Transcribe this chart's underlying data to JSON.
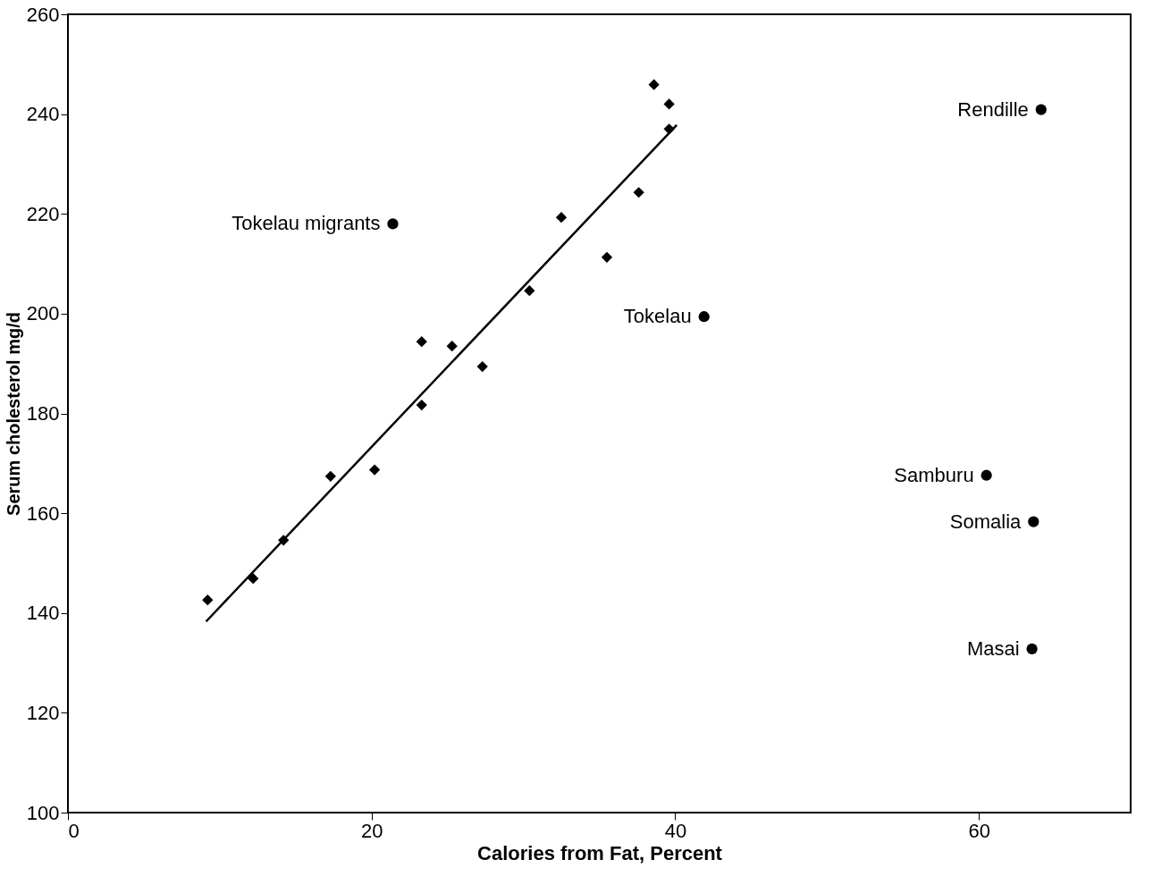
{
  "chart_data": {
    "type": "scatter",
    "xlabel": "Calories from Fat, Percent",
    "ylabel": "Serum cholesterol mg/d",
    "xlim": [
      0,
      70
    ],
    "ylim": [
      100,
      260
    ],
    "xticks": [
      0,
      20,
      40,
      60
    ],
    "yticks": [
      100,
      120,
      140,
      160,
      180,
      200,
      220,
      240,
      260
    ],
    "grid": false,
    "series": [
      {
        "marker": "diamond",
        "color": "#000000",
        "x": [
          9.2,
          12.2,
          14.2,
          17.3,
          20.2,
          23.3,
          23.3,
          25.3,
          27.3,
          30.4,
          32.5,
          35.5,
          37.6,
          38.6,
          39.6,
          39.6
        ],
        "values": [
          142.6,
          146.9,
          154.6,
          167.4,
          168.7,
          181.7,
          194.4,
          193.5,
          189.4,
          204.6,
          219.3,
          211.3,
          224.3,
          245.9,
          242.0,
          237.0
        ]
      },
      {
        "marker": "circle",
        "color": "#000000",
        "x": [
          21.4,
          64.1,
          41.9,
          60.5,
          63.6,
          63.5
        ],
        "values": [
          218.0,
          240.9,
          199.4,
          167.6,
          158.3,
          132.8
        ]
      },
      {
        "type": "line",
        "marker": "none",
        "line_style": "solid",
        "color": "#000000",
        "x": [
          9.1,
          40.1
        ],
        "values": [
          138.3,
          237.8
        ]
      }
    ],
    "annotations": [
      {
        "text": "Tokelau migrants",
        "x": 21.4,
        "y": 218.0
      },
      {
        "text": "Rendille",
        "x": 64.1,
        "y": 240.9
      },
      {
        "text": "Tokelau",
        "x": 41.9,
        "y": 199.4
      },
      {
        "text": "Samburu",
        "x": 60.5,
        "y": 167.6
      },
      {
        "text": "Somalia",
        "x": 63.6,
        "y": 158.3
      },
      {
        "text": "Masai",
        "x": 63.5,
        "y": 132.8
      }
    ]
  }
}
